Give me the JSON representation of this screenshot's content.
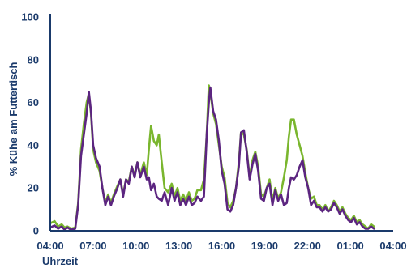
{
  "chart_data": {
    "type": "line",
    "xlabel": "Uhrzeit",
    "ylabel": "% Kühe am Futtertisch",
    "x_tick_labels": [
      "04:00",
      "07:00",
      "10:00",
      "13:00",
      "16:00",
      "19:00",
      "22:00",
      "01:00",
      "04:00"
    ],
    "y_ticks": [
      0,
      20,
      40,
      60,
      80,
      100
    ],
    "xlim": [
      0,
      24
    ],
    "ylim": [
      0,
      100
    ],
    "grid": false,
    "legend": "none",
    "colors": {
      "axis": "#1a3a6b",
      "text": "#1a3a6b"
    },
    "series": [
      {
        "color": "#7ab62e",
        "points": [
          [
            0.0,
            3.5
          ],
          [
            0.3,
            4.5
          ],
          [
            0.55,
            2.0
          ],
          [
            0.8,
            3.0
          ],
          [
            1.0,
            1.5
          ],
          [
            1.2,
            2.0
          ],
          [
            1.45,
            1.0
          ],
          [
            1.75,
            1.5
          ],
          [
            1.95,
            13.0
          ],
          [
            2.15,
            38.0
          ],
          [
            2.35,
            50.0
          ],
          [
            2.55,
            60.0
          ],
          [
            2.7,
            64.0
          ],
          [
            2.85,
            55.0
          ],
          [
            3.0,
            38.0
          ],
          [
            3.2,
            32.0
          ],
          [
            3.45,
            28.0
          ],
          [
            3.65,
            20.0
          ],
          [
            3.85,
            13.0
          ],
          [
            4.05,
            17.0
          ],
          [
            4.25,
            13.0
          ],
          [
            4.45,
            17.0
          ],
          [
            4.7,
            21.0
          ],
          [
            4.9,
            24.0
          ],
          [
            5.1,
            17.0
          ],
          [
            5.3,
            24.0
          ],
          [
            5.5,
            23.0
          ],
          [
            5.7,
            30.0
          ],
          [
            5.9,
            26.0
          ],
          [
            6.1,
            32.0
          ],
          [
            6.3,
            26.0
          ],
          [
            6.55,
            32.0
          ],
          [
            6.75,
            26.0
          ],
          [
            6.9,
            38.0
          ],
          [
            7.05,
            49.0
          ],
          [
            7.25,
            42.0
          ],
          [
            7.45,
            40.0
          ],
          [
            7.6,
            45.0
          ],
          [
            7.8,
            32.0
          ],
          [
            8.0,
            20.0
          ],
          [
            8.25,
            18.0
          ],
          [
            8.5,
            22.0
          ],
          [
            8.7,
            16.0
          ],
          [
            8.9,
            20.0
          ],
          [
            9.1,
            14.0
          ],
          [
            9.3,
            17.0
          ],
          [
            9.5,
            14.0
          ],
          [
            9.7,
            18.0
          ],
          [
            9.9,
            14.0
          ],
          [
            10.1,
            15.0
          ],
          [
            10.3,
            19.0
          ],
          [
            10.55,
            19.0
          ],
          [
            10.75,
            24.0
          ],
          [
            10.95,
            45.0
          ],
          [
            11.1,
            68.0
          ],
          [
            11.2,
            65.0
          ],
          [
            11.4,
            55.0
          ],
          [
            11.6,
            50.0
          ],
          [
            11.8,
            40.0
          ],
          [
            12.0,
            30.0
          ],
          [
            12.2,
            25.0
          ],
          [
            12.4,
            13.0
          ],
          [
            12.6,
            11.0
          ],
          [
            12.8,
            14.0
          ],
          [
            13.0,
            20.0
          ],
          [
            13.2,
            32.0
          ],
          [
            13.35,
            46.0
          ],
          [
            13.55,
            45.0
          ],
          [
            13.75,
            38.0
          ],
          [
            13.95,
            25.0
          ],
          [
            14.15,
            33.0
          ],
          [
            14.35,
            37.0
          ],
          [
            14.55,
            30.0
          ],
          [
            14.75,
            17.0
          ],
          [
            14.95,
            16.0
          ],
          [
            15.15,
            20.0
          ],
          [
            15.35,
            24.0
          ],
          [
            15.55,
            14.0
          ],
          [
            15.75,
            20.0
          ],
          [
            15.95,
            15.0
          ],
          [
            16.15,
            18.0
          ],
          [
            16.35,
            25.0
          ],
          [
            16.55,
            33.0
          ],
          [
            16.7,
            44.0
          ],
          [
            16.85,
            52.0
          ],
          [
            17.05,
            52.0
          ],
          [
            17.25,
            45.0
          ],
          [
            17.45,
            40.0
          ],
          [
            17.65,
            35.0
          ],
          [
            17.85,
            27.0
          ],
          [
            18.05,
            20.0
          ],
          [
            18.25,
            15.0
          ],
          [
            18.45,
            16.0
          ],
          [
            18.65,
            12.0
          ],
          [
            18.85,
            12.0
          ],
          [
            19.05,
            10.0
          ],
          [
            19.25,
            12.0
          ],
          [
            19.45,
            9.0
          ],
          [
            19.65,
            11.0
          ],
          [
            19.85,
            14.0
          ],
          [
            20.05,
            12.0
          ],
          [
            20.25,
            9.0
          ],
          [
            20.45,
            11.0
          ],
          [
            20.65,
            8.0
          ],
          [
            20.85,
            6.0
          ],
          [
            21.05,
            5.0
          ],
          [
            21.25,
            7.0
          ],
          [
            21.45,
            4.0
          ],
          [
            21.65,
            5.0
          ],
          [
            21.85,
            3.0
          ],
          [
            22.05,
            2.0
          ],
          [
            22.25,
            1.0
          ],
          [
            22.45,
            3.0
          ],
          [
            22.65,
            2.0
          ]
        ]
      },
      {
        "color": "#5c2580",
        "points": [
          [
            0.0,
            1.5
          ],
          [
            0.3,
            2.5
          ],
          [
            0.55,
            1.0
          ],
          [
            0.8,
            2.0
          ],
          [
            1.0,
            0.5
          ],
          [
            1.2,
            1.5
          ],
          [
            1.45,
            0.5
          ],
          [
            1.75,
            1.0
          ],
          [
            1.95,
            12.0
          ],
          [
            2.15,
            35.0
          ],
          [
            2.35,
            45.0
          ],
          [
            2.55,
            55.0
          ],
          [
            2.7,
            65.0
          ],
          [
            2.85,
            56.0
          ],
          [
            3.0,
            40.0
          ],
          [
            3.2,
            34.0
          ],
          [
            3.45,
            30.0
          ],
          [
            3.65,
            20.0
          ],
          [
            3.85,
            12.0
          ],
          [
            4.05,
            16.0
          ],
          [
            4.25,
            12.0
          ],
          [
            4.45,
            16.0
          ],
          [
            4.7,
            20.0
          ],
          [
            4.9,
            24.0
          ],
          [
            5.1,
            16.0
          ],
          [
            5.3,
            24.0
          ],
          [
            5.5,
            22.0
          ],
          [
            5.7,
            30.0
          ],
          [
            5.9,
            25.0
          ],
          [
            6.1,
            32.0
          ],
          [
            6.3,
            25.0
          ],
          [
            6.55,
            30.0
          ],
          [
            6.75,
            24.0
          ],
          [
            6.9,
            25.0
          ],
          [
            7.05,
            19.0
          ],
          [
            7.25,
            22.0
          ],
          [
            7.45,
            16.0
          ],
          [
            7.6,
            15.0
          ],
          [
            7.8,
            14.0
          ],
          [
            8.0,
            18.0
          ],
          [
            8.25,
            12.0
          ],
          [
            8.5,
            20.0
          ],
          [
            8.7,
            14.0
          ],
          [
            8.9,
            18.0
          ],
          [
            9.1,
            12.0
          ],
          [
            9.3,
            15.0
          ],
          [
            9.5,
            12.0
          ],
          [
            9.7,
            16.0
          ],
          [
            9.9,
            12.0
          ],
          [
            10.1,
            13.0
          ],
          [
            10.3,
            16.0
          ],
          [
            10.55,
            14.0
          ],
          [
            10.75,
            16.0
          ],
          [
            10.95,
            45.0
          ],
          [
            11.1,
            60.0
          ],
          [
            11.2,
            67.0
          ],
          [
            11.4,
            56.0
          ],
          [
            11.6,
            52.0
          ],
          [
            11.8,
            42.0
          ],
          [
            12.0,
            28.0
          ],
          [
            12.2,
            22.0
          ],
          [
            12.4,
            10.0
          ],
          [
            12.6,
            9.0
          ],
          [
            12.8,
            12.0
          ],
          [
            13.0,
            20.0
          ],
          [
            13.2,
            30.0
          ],
          [
            13.35,
            46.0
          ],
          [
            13.55,
            47.0
          ],
          [
            13.75,
            37.0
          ],
          [
            13.95,
            24.0
          ],
          [
            14.15,
            31.0
          ],
          [
            14.35,
            36.0
          ],
          [
            14.55,
            28.0
          ],
          [
            14.75,
            15.0
          ],
          [
            14.95,
            14.0
          ],
          [
            15.15,
            20.0
          ],
          [
            15.35,
            22.0
          ],
          [
            15.55,
            12.0
          ],
          [
            15.75,
            19.0
          ],
          [
            15.95,
            14.0
          ],
          [
            16.15,
            17.0
          ],
          [
            16.35,
            12.0
          ],
          [
            16.55,
            13.0
          ],
          [
            16.7,
            20.0
          ],
          [
            16.85,
            25.0
          ],
          [
            17.05,
            24.0
          ],
          [
            17.25,
            26.0
          ],
          [
            17.45,
            30.0
          ],
          [
            17.65,
            33.0
          ],
          [
            17.85,
            25.0
          ],
          [
            18.05,
            20.0
          ],
          [
            18.25,
            12.0
          ],
          [
            18.45,
            14.0
          ],
          [
            18.65,
            11.0
          ],
          [
            18.85,
            11.0
          ],
          [
            19.05,
            9.0
          ],
          [
            19.25,
            11.0
          ],
          [
            19.45,
            9.0
          ],
          [
            19.65,
            10.0
          ],
          [
            19.85,
            13.0
          ],
          [
            20.05,
            11.0
          ],
          [
            20.25,
            8.0
          ],
          [
            20.45,
            10.0
          ],
          [
            20.65,
            7.0
          ],
          [
            20.85,
            5.0
          ],
          [
            21.05,
            4.0
          ],
          [
            21.25,
            6.0
          ],
          [
            21.45,
            3.0
          ],
          [
            21.65,
            4.0
          ],
          [
            21.85,
            2.0
          ],
          [
            22.05,
            1.0
          ],
          [
            22.25,
            1.0
          ],
          [
            22.45,
            2.0
          ],
          [
            22.65,
            1.0
          ]
        ]
      }
    ]
  }
}
